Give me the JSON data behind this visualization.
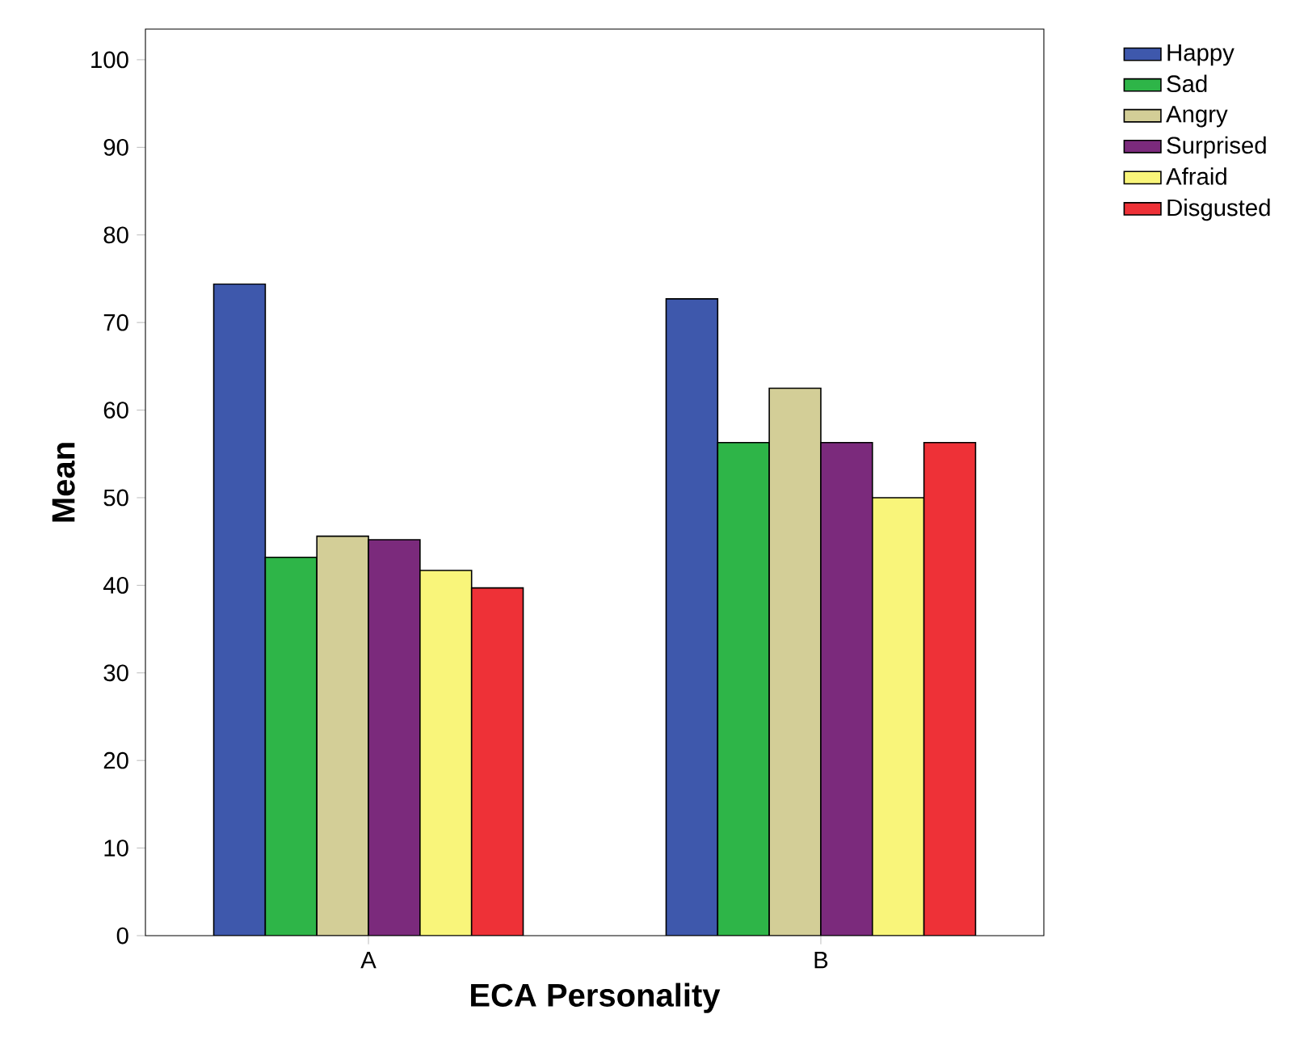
{
  "chart_data": {
    "type": "bar",
    "xlabel": "ECA Personality",
    "ylabel": "Mean",
    "categories": [
      "A",
      "B"
    ],
    "series": [
      {
        "name": "Happy",
        "color": "#3e58ac",
        "values": [
          74.4,
          72.7
        ]
      },
      {
        "name": "Sad",
        "color": "#2eb548",
        "values": [
          43.2,
          56.3
        ]
      },
      {
        "name": "Angry",
        "color": "#d3ce97",
        "values": [
          45.6,
          62.5
        ]
      },
      {
        "name": "Surprised",
        "color": "#7b2a7c",
        "values": [
          45.2,
          56.3
        ]
      },
      {
        "name": "Afraid",
        "color": "#f9f57a",
        "values": [
          41.7,
          50.0
        ]
      },
      {
        "name": "Disgusted",
        "color": "#ee3137",
        "values": [
          39.7,
          56.3
        ]
      }
    ],
    "ylim": [
      0,
      103.5
    ],
    "yticks": [
      0,
      10,
      20,
      30,
      40,
      50,
      60,
      70,
      80,
      90,
      100
    ],
    "legend": "top right",
    "grid": false
  }
}
